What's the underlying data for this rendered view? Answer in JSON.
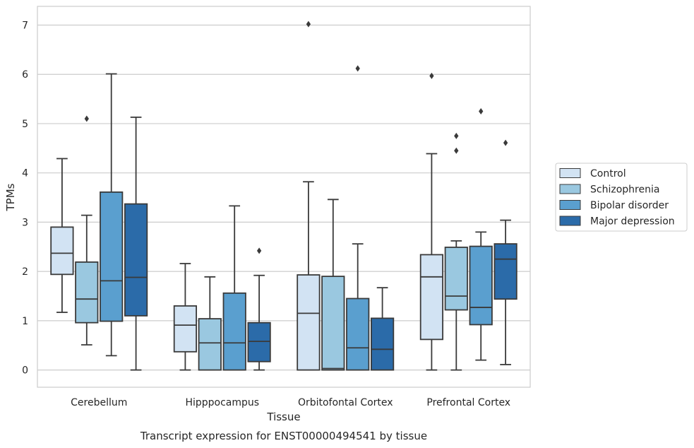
{
  "chart_data": {
    "type": "box",
    "caption": "Transcript expression for ENST00000494541 by tissue",
    "xlabel": "Tissue",
    "ylabel": "TPMs",
    "ylim": [
      -0.35,
      7.38
    ],
    "yticks": [
      0,
      1,
      2,
      3,
      4,
      5,
      6,
      7
    ],
    "grid": true,
    "legend_position": "right",
    "categories": [
      "Cerebellum",
      "Hipppocampus",
      "Orbitofontal Cortex",
      "Prefrontal Cortex"
    ],
    "series": [
      {
        "name": "Control",
        "color": "#d2e3f3",
        "boxes": [
          {
            "whislo": 1.17,
            "q1": 1.94,
            "med": 2.37,
            "q3": 2.9,
            "whishi": 4.29,
            "fliers": []
          },
          {
            "whislo": 0.0,
            "q1": 0.37,
            "med": 0.91,
            "q3": 1.3,
            "whishi": 2.16,
            "fliers": []
          },
          {
            "whislo": 0.0,
            "q1": 0.0,
            "med": 1.15,
            "q3": 1.93,
            "whishi": 3.82,
            "fliers": [
              7.02
            ]
          },
          {
            "whislo": 0.0,
            "q1": 0.62,
            "med": 1.89,
            "q3": 2.34,
            "whishi": 4.39,
            "fliers": [
              5.97
            ]
          }
        ]
      },
      {
        "name": "Schizophrenia",
        "color": "#9ac8e0",
        "boxes": [
          {
            "whislo": 0.51,
            "q1": 0.96,
            "med": 1.44,
            "q3": 2.19,
            "whishi": 3.14,
            "fliers": [
              5.1
            ]
          },
          {
            "whislo": 0.0,
            "q1": 0.0,
            "med": 0.55,
            "q3": 1.04,
            "whishi": 1.89,
            "fliers": []
          },
          {
            "whislo": 0.0,
            "q1": 0.0,
            "med": 0.03,
            "q3": 1.9,
            "whishi": 3.46,
            "fliers": []
          },
          {
            "whislo": 0.0,
            "q1": 1.22,
            "med": 1.5,
            "q3": 2.49,
            "whishi": 2.62,
            "fliers": [
              4.45,
              4.75
            ]
          }
        ]
      },
      {
        "name": "Bipolar disorder",
        "color": "#5a9fcf",
        "boxes": [
          {
            "whislo": 0.29,
            "q1": 0.99,
            "med": 1.81,
            "q3": 3.61,
            "whishi": 6.01,
            "fliers": []
          },
          {
            "whislo": 0.0,
            "q1": 0.0,
            "med": 0.55,
            "q3": 1.56,
            "whishi": 3.33,
            "fliers": []
          },
          {
            "whislo": 0.0,
            "q1": 0.0,
            "med": 0.45,
            "q3": 1.45,
            "whishi": 2.56,
            "fliers": [
              6.12
            ]
          },
          {
            "whislo": 0.2,
            "q1": 0.92,
            "med": 1.27,
            "q3": 2.51,
            "whishi": 2.8,
            "fliers": [
              5.25
            ]
          }
        ]
      },
      {
        "name": "Major depression",
        "color": "#2b6ba9",
        "boxes": [
          {
            "whislo": 0.0,
            "q1": 1.1,
            "med": 1.88,
            "q3": 3.37,
            "whishi": 5.13,
            "fliers": []
          },
          {
            "whislo": 0.0,
            "q1": 0.17,
            "med": 0.58,
            "q3": 0.96,
            "whishi": 1.92,
            "fliers": [
              2.42
            ]
          },
          {
            "whislo": 0.0,
            "q1": 0.0,
            "med": 0.42,
            "q3": 1.05,
            "whishi": 1.67,
            "fliers": []
          },
          {
            "whislo": 0.11,
            "q1": 1.44,
            "med": 2.25,
            "q3": 2.56,
            "whishi": 3.04,
            "fliers": [
              4.61
            ]
          }
        ]
      }
    ]
  }
}
